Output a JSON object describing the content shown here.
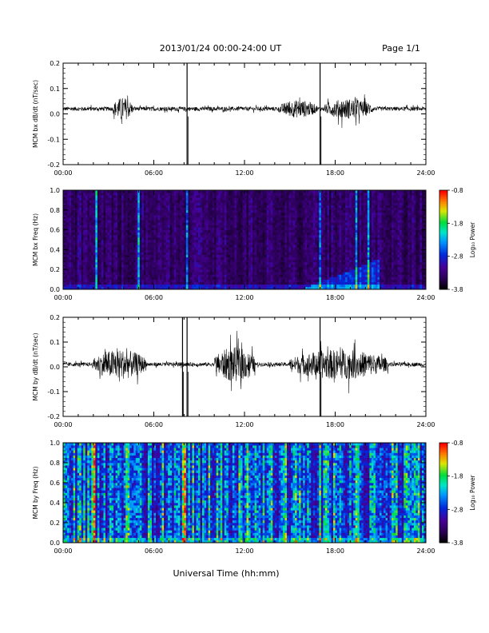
{
  "header": {
    "date_range": "2013/01/24  00:00-24:00 UT",
    "page": "Page 1/1"
  },
  "xlabel": "Universal Time (hh:mm)",
  "chart_data": [
    {
      "type": "line",
      "ylabel": "MCM bx dB/dt (nT/sec)",
      "ylim": [
        -0.2,
        0.2
      ],
      "xlim": [
        "00:00",
        "24:00"
      ],
      "yticks": [
        "-0.2",
        "-0.1",
        "0.0",
        "0.1",
        "0.2"
      ],
      "xticks": [
        "00:00",
        "06:00",
        "12:00",
        "18:00",
        "24:00"
      ],
      "baseline": 0.02,
      "bursts": [
        {
          "start_hour": 3.3,
          "end_hour": 4.6,
          "amplitude": 0.045
        },
        {
          "start_hour": 14.3,
          "end_hour": 16.8,
          "amplitude": 0.035
        },
        {
          "start_hour": 17.3,
          "end_hour": 20.5,
          "amplitude": 0.04
        }
      ],
      "spikes": [
        {
          "hour": 8.2,
          "max": 0.2,
          "min": -0.2
        },
        {
          "hour": 17.0,
          "max": 0.2,
          "min": -0.2
        }
      ]
    },
    {
      "type": "heatmap",
      "ylabel": "MCM bx Freq (Hz)",
      "ylim": [
        0.0,
        1.0
      ],
      "xlim": [
        "00:00",
        "24:00"
      ],
      "yticks": [
        "0.0",
        "0.2",
        "0.4",
        "0.6",
        "0.8",
        "1.0"
      ],
      "xticks": [
        "00:00",
        "06:00",
        "12:00",
        "18:00",
        "24:00"
      ],
      "colorbar_label": "Log₁₀ Power",
      "colorbar_ticks": [
        "-0.8",
        "-1.8",
        "-2.8",
        "-3.8"
      ],
      "colorbar_range": [
        -3.8,
        -0.8
      ],
      "activity_level": 0.15,
      "bright_columns_hours": [
        2.2,
        5.0,
        8.2,
        17.0,
        19.4,
        20.2
      ]
    },
    {
      "type": "line",
      "ylabel": "MCM by dB/dt (nT/sec)",
      "ylim": [
        -0.2,
        0.2
      ],
      "xlim": [
        "00:00",
        "24:00"
      ],
      "yticks": [
        "-0.2",
        "-0.1",
        "0.0",
        "0.1",
        "0.2"
      ],
      "xticks": [
        "00:00",
        "06:00",
        "12:00",
        "18:00",
        "24:00"
      ],
      "baseline": 0.01,
      "bursts": [
        {
          "start_hour": 2.0,
          "end_hour": 5.5,
          "amplitude": 0.06
        },
        {
          "start_hour": 10.0,
          "end_hour": 12.7,
          "amplitude": 0.07
        },
        {
          "start_hour": 15.0,
          "end_hour": 21.5,
          "amplitude": 0.06
        }
      ],
      "spikes": [
        {
          "hour": 7.9,
          "max": 0.2,
          "min": -0.2
        },
        {
          "hour": 8.2,
          "max": 0.2,
          "min": -0.2
        },
        {
          "hour": 17.0,
          "max": 0.2,
          "min": -0.2
        }
      ]
    },
    {
      "type": "heatmap",
      "ylabel": "MCM by Freq (Hz)",
      "ylim": [
        0.0,
        1.0
      ],
      "xlim": [
        "00:00",
        "24:00"
      ],
      "yticks": [
        "0.0",
        "0.2",
        "0.4",
        "0.6",
        "0.8",
        "1.0"
      ],
      "xticks": [
        "00:00",
        "06:00",
        "12:00",
        "18:00",
        "24:00"
      ],
      "colorbar_label": "Log₁₀ Power",
      "colorbar_ticks": [
        "-0.8",
        "-1.8",
        "-2.8",
        "-3.8"
      ],
      "colorbar_range": [
        -3.8,
        -0.8
      ],
      "activity_level": 0.45,
      "bright_columns_hours": [
        2.0,
        4.2,
        8.0,
        10.5,
        12.2,
        17.0,
        19.5
      ]
    }
  ]
}
